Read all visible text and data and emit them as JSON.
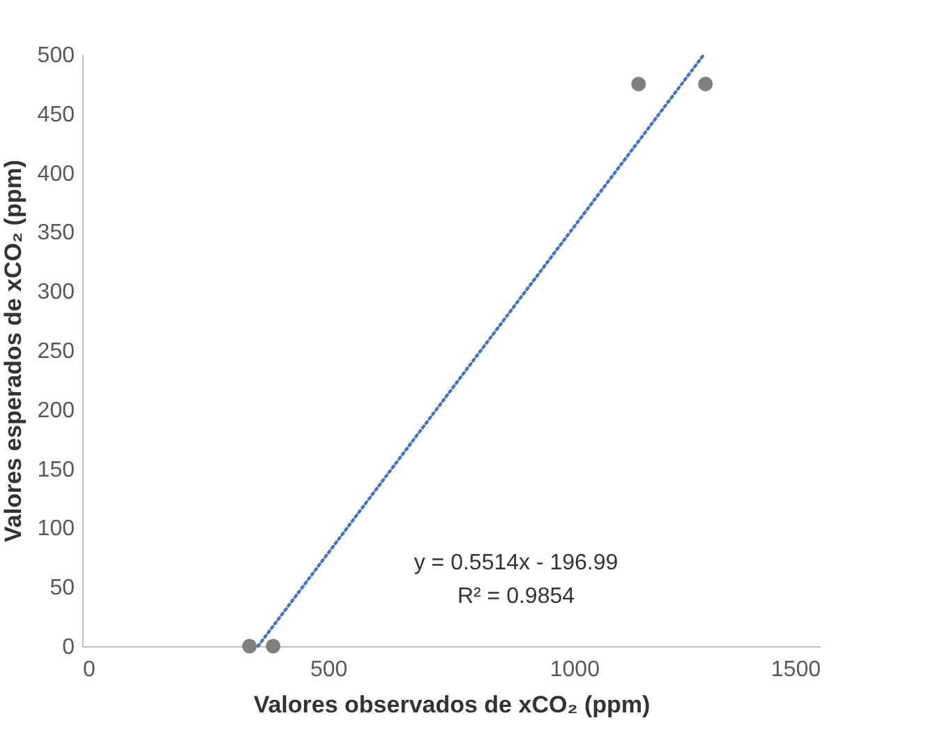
{
  "chart_data": {
    "type": "scatter",
    "xlabel": "Valores observados de xCO₂ (ppm)",
    "ylabel": "Valores esperados de xCO₂ (ppm)",
    "x": [
      340,
      388,
      1131,
      1267
    ],
    "series": [
      {
        "color": "#7f7f7f",
        "values": [
          0,
          0,
          475,
          475
        ],
        "marker": "circle"
      },
      {
        "type": "line",
        "color": "#4472c4",
        "x": [
          357.3,
          1264.0
        ],
        "values": [
          0,
          500
        ],
        "line_style": "dotted",
        "marker": "none"
      }
    ],
    "xlim": [
      0,
      1500
    ],
    "xticks": [
      0,
      500,
      1000,
      1500
    ],
    "ylim": [
      0,
      500
    ],
    "yticks": [
      0,
      50,
      100,
      150,
      200,
      250,
      300,
      350,
      400,
      450,
      500
    ],
    "grid": false,
    "annotations": [
      "y = 0.5514x - 196.99",
      "R² = 0.9854"
    ]
  }
}
